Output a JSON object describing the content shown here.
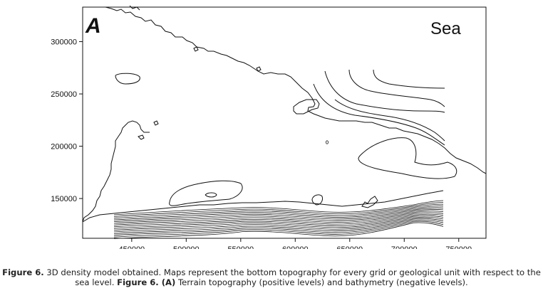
{
  "chart_data": {
    "type": "contour",
    "panel_letter": "A",
    "panel_title": "Sea",
    "xlim": [
      405000,
      775000
    ],
    "ylim": [
      112000,
      333000
    ],
    "x_ticks": [
      450000,
      500000,
      550000,
      600000,
      650000,
      700000,
      750000
    ],
    "y_ticks": [
      150000,
      200000,
      250000,
      300000
    ],
    "grid": false
  },
  "caption": {
    "fig_label_1": "Figure 6.",
    "text_1": " 3D density model obtained. Maps represent the bottom topography for every grid or geological unit with respect to the sea level. ",
    "fig_label_2": "Figure 6. (A)",
    "text_2": " Terrain topography (positive levels) and bathymetry (negative levels)."
  }
}
